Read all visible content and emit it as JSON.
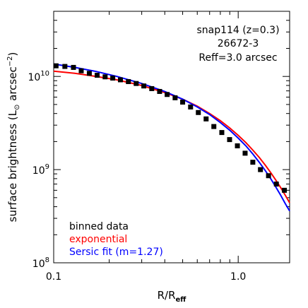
{
  "chart_data": {
    "type": "scatter",
    "x_scale": "log",
    "y_scale": "log",
    "xlim": [
      0.1,
      1.9
    ],
    "ylim": [
      100000000.0,
      50000000000.0
    ],
    "xlabel_main": "R/R",
    "xlabel_sub": "eff",
    "ylabel_main": "surface brightness (L",
    "ylabel_sym": "⊙",
    "ylabel_rest": " arcsec",
    "ylabel_sup": "−2",
    "ylabel_close": ")",
    "x_ticks": [
      {
        "value": 0.1,
        "label": "0.1"
      },
      {
        "value": 1.0,
        "label": "1.0"
      }
    ],
    "y_ticks": [
      {
        "value": 100000000.0,
        "base": "10",
        "exp": "8"
      },
      {
        "value": 1000000000.0,
        "base": "10",
        "exp": "9"
      },
      {
        "value": 10000000000.0,
        "base": "10",
        "exp": "10"
      }
    ],
    "annotations": [
      "snap114 (z=0.3)",
      "26672-3",
      "Reff=3.0 arcsec"
    ],
    "legend_position": "bottom-left",
    "series": [
      {
        "name": "binned data",
        "kind": "points",
        "color": "#000000",
        "x": [
          0.103,
          0.115,
          0.128,
          0.141,
          0.156,
          0.172,
          0.19,
          0.209,
          0.23,
          0.254,
          0.28,
          0.308,
          0.34,
          0.375,
          0.412,
          0.455,
          0.5,
          0.552,
          0.608,
          0.67,
          0.738,
          0.815,
          0.898,
          0.99,
          1.09,
          1.2,
          1.32,
          1.46,
          1.61,
          1.78
        ],
        "y": [
          13000000000.0,
          12800000000.0,
          12500000000.0,
          11500000000.0,
          10800000000.0,
          10300000000.0,
          9900000000.0,
          9600000000.0,
          9200000000.0,
          8800000000.0,
          8400000000.0,
          7900000000.0,
          7400000000.0,
          6900000000.0,
          6400000000.0,
          5900000000.0,
          5300000000.0,
          4700000000.0,
          4100000000.0,
          3500000000.0,
          2900000000.0,
          2500000000.0,
          2100000000.0,
          1800000000.0,
          1500000000.0,
          1200000000.0,
          1000000000.0,
          860000000.0,
          700000000.0,
          600000000.0
        ]
      },
      {
        "name": "exponential",
        "kind": "line",
        "color": "#ff0000",
        "x": [
          0.1,
          0.13,
          0.17,
          0.22,
          0.3,
          0.4,
          0.5,
          0.6,
          0.7,
          0.8,
          0.9,
          1.0,
          1.1,
          1.2,
          1.3,
          1.4,
          1.5,
          1.6,
          1.7,
          1.8,
          1.9
        ],
        "y": [
          11400000000.0,
          10800000000.0,
          10000000000.0,
          9200000000.0,
          8000000000.0,
          6700000000.0,
          5700000000.0,
          4800000000.0,
          4000000000.0,
          3350000000.0,
          2800000000.0,
          2330000000.0,
          1950000000.0,
          1620000000.0,
          1350000000.0,
          1120000000.0,
          930000000.0,
          770000000.0,
          640000000.0,
          530000000.0,
          440000000.0
        ]
      },
      {
        "name": "Sersic fit (m=1.27)",
        "kind": "line",
        "color": "#0000ff",
        "x": [
          0.1,
          0.13,
          0.17,
          0.22,
          0.3,
          0.4,
          0.5,
          0.6,
          0.7,
          0.8,
          0.9,
          1.0,
          1.1,
          1.2,
          1.3,
          1.4,
          1.5,
          1.6,
          1.7,
          1.8,
          1.9
        ],
        "y": [
          13600000000.0,
          12500000000.0,
          11300000000.0,
          10000000000.0,
          8400000000.0,
          6900000000.0,
          5700000000.0,
          4700000000.0,
          3900000000.0,
          3200000000.0,
          2650000000.0,
          2180000000.0,
          1800000000.0,
          1470000000.0,
          1200000000.0,
          980000000.0,
          800000000.0,
          650000000.0,
          530000000.0,
          430000000.0,
          360000000.0
        ]
      }
    ]
  }
}
